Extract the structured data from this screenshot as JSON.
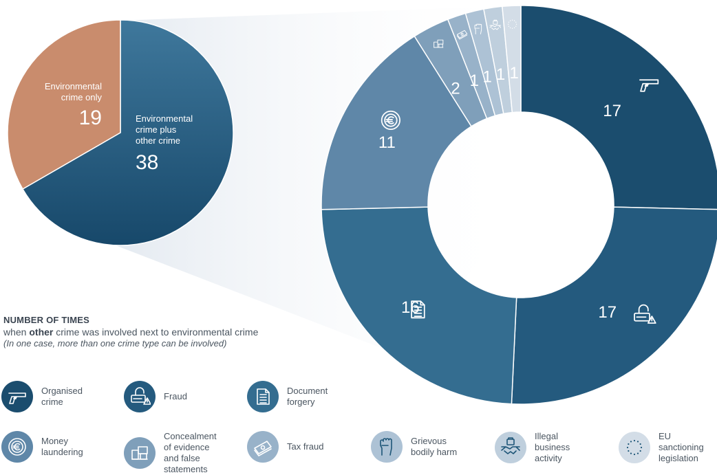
{
  "caption": {
    "heading": "NUMBER OF TIMES",
    "line_prefix": "when ",
    "line_bold": "other",
    "line_suffix": " crime was involved next to environmental crime",
    "note": "(In one case, more than one crime type can be involved)"
  },
  "chart_data": [
    {
      "type": "pie",
      "labels": [
        "Environmental crime only",
        "Environmental crime plus other crime"
      ],
      "values": [
        19,
        38
      ],
      "label_lines": [
        [
          "Environmental",
          "crime only"
        ],
        [
          "Environmental",
          "crime plus",
          "other crime"
        ]
      ],
      "colors": [
        "#c98c6d",
        "#1d5577"
      ]
    },
    {
      "type": "pie",
      "donut": true,
      "labels": [
        "Organised crime",
        "Fraud",
        "Document forgery",
        "Money laundering",
        "Concealment of evidence and false statements",
        "Tax fraud",
        "Grievous bodily harm",
        "Illegal business activity",
        "EU sanctioning legislation"
      ],
      "values": [
        17,
        17,
        16,
        11,
        2,
        1,
        1,
        1,
        1
      ],
      "icons": [
        "pistol-icon",
        "fraud-lock-icon",
        "document-icon",
        "euro-coin-icon",
        "boxes-icon",
        "banknotes-icon",
        "fist-icon",
        "handshake-icon",
        "eu-stars-icon"
      ],
      "colors": [
        "#1b4d6e",
        "#245a7e",
        "#346d90",
        "#5f87a8",
        "#7f9fba",
        "#98b2c9",
        "#adc2d5",
        "#bfcfdd",
        "#d3dde7"
      ]
    }
  ],
  "legend": [
    {
      "label": "Organised\ncrime",
      "icon": "pistol-icon",
      "color": "#1b4d6e"
    },
    {
      "label": "Fraud",
      "icon": "fraud-lock-icon",
      "color": "#245a7e"
    },
    {
      "label": "Document\nforgery",
      "icon": "document-icon",
      "color": "#346d90"
    },
    {
      "label": "Money\nlaundering",
      "icon": "euro-coin-icon",
      "color": "#5f87a8"
    },
    {
      "label": "Concealment\nof evidence\nand false\nstatements",
      "icon": "boxes-icon",
      "color": "#7f9fba"
    },
    {
      "label": "Tax fraud",
      "icon": "banknotes-icon",
      "color": "#98b2c9"
    },
    {
      "label": "Grievous\nbodily harm",
      "icon": "fist-icon",
      "color": "#adc2d5"
    },
    {
      "label": "Illegal\nbusiness\nactivity",
      "icon": "handshake-icon",
      "color": "#bfcfdd"
    },
    {
      "label": "EU\nsanctioning\nlegislation",
      "icon": "eu-stars-icon",
      "color": "#d3dde7"
    }
  ]
}
